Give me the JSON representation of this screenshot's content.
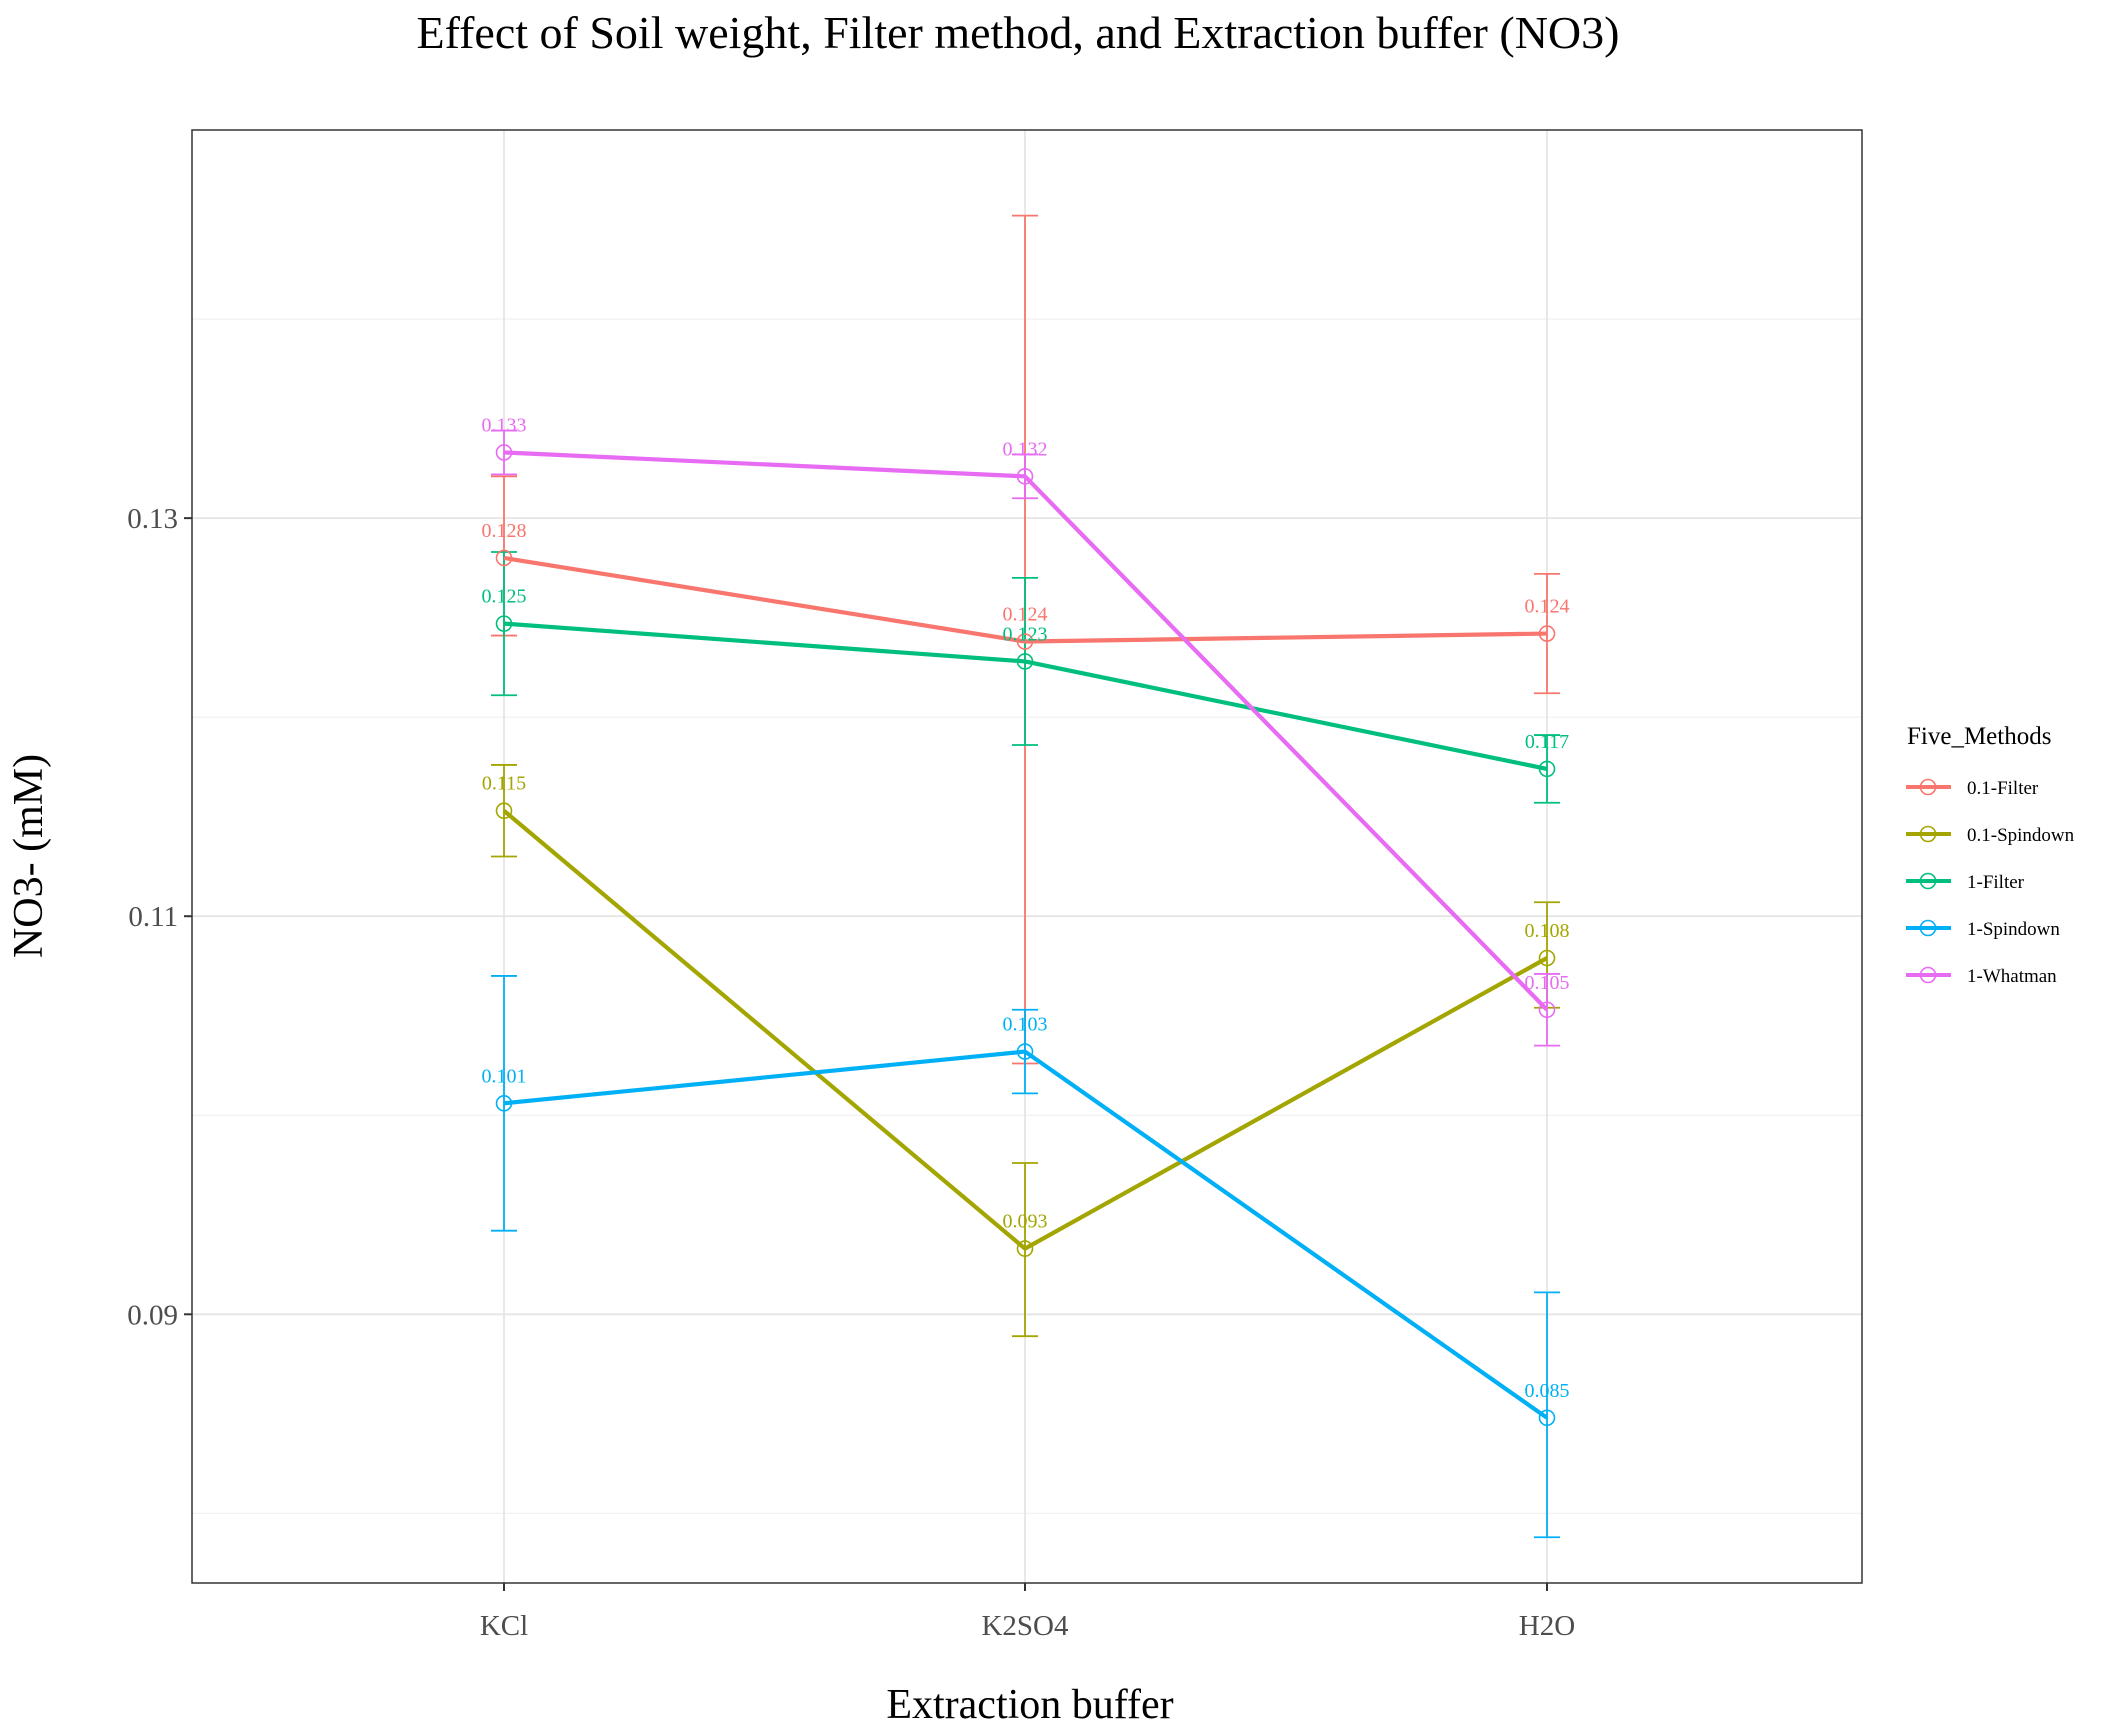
{
  "chart_data": {
    "type": "line",
    "title": "Effect of Soil weight, Filter method, and Extraction buffer (NO3)",
    "xlabel": "Extraction buffer",
    "ylabel": "NO3- (mM)",
    "categories": [
      "KCl",
      "K2SO4",
      "H2O"
    ],
    "ylim": [
      0.0765,
      0.1495
    ],
    "yticks": [
      0.09,
      0.11,
      0.13
    ],
    "ytick_labels": [
      "0.09",
      "0.11",
      "0.13"
    ],
    "grid": true,
    "legend": {
      "title": "Five_Methods",
      "position": "right"
    },
    "series": [
      {
        "name": "0.1-Filter",
        "color": "#F8766D",
        "values": [
          0.128,
          0.1238,
          0.1242
        ],
        "errors": [
          [
            0.1241,
            0.1321
          ],
          [
            0.1026,
            0.1452
          ],
          [
            0.1212,
            0.1272
          ]
        ],
        "labels": [
          "0.128",
          "0.124",
          "0.124"
        ]
      },
      {
        "name": "0.1-Spindown",
        "color": "#A3A500",
        "values": [
          0.1153,
          0.0933,
          0.1079
        ],
        "errors": [
          [
            0.113,
            0.1176
          ],
          [
            0.0889,
            0.0976
          ],
          [
            0.1054,
            0.1107
          ]
        ],
        "labels": [
          "0.115",
          "0.093",
          "0.108"
        ]
      },
      {
        "name": "1-Filter",
        "color": "#00BF7D",
        "values": [
          0.1247,
          0.1228,
          0.1174
        ],
        "errors": [
          [
            0.1211,
            0.1283
          ],
          [
            0.1186,
            0.127
          ],
          [
            0.1157,
            0.1191
          ]
        ],
        "labels": [
          "0.125",
          "0.123",
          "0.117"
        ]
      },
      {
        "name": "1-Spindown",
        "color": "#00B0F6",
        "values": [
          0.1006,
          0.1032,
          0.0848
        ],
        "errors": [
          [
            0.0942,
            0.107
          ],
          [
            0.1011,
            0.1053
          ],
          [
            0.0788,
            0.0911
          ]
        ],
        "labels": [
          "0.101",
          "0.103",
          "0.085"
        ]
      },
      {
        "name": "1-Whatman",
        "color": "#E76BF3",
        "values": [
          0.1333,
          0.1321,
          0.1053
        ],
        "errors": [
          [
            0.1322,
            0.1344
          ],
          [
            0.131,
            0.1332
          ],
          [
            0.1035,
            0.1071
          ]
        ],
        "labels": [
          "0.133",
          "0.132",
          "0.105"
        ]
      }
    ]
  }
}
